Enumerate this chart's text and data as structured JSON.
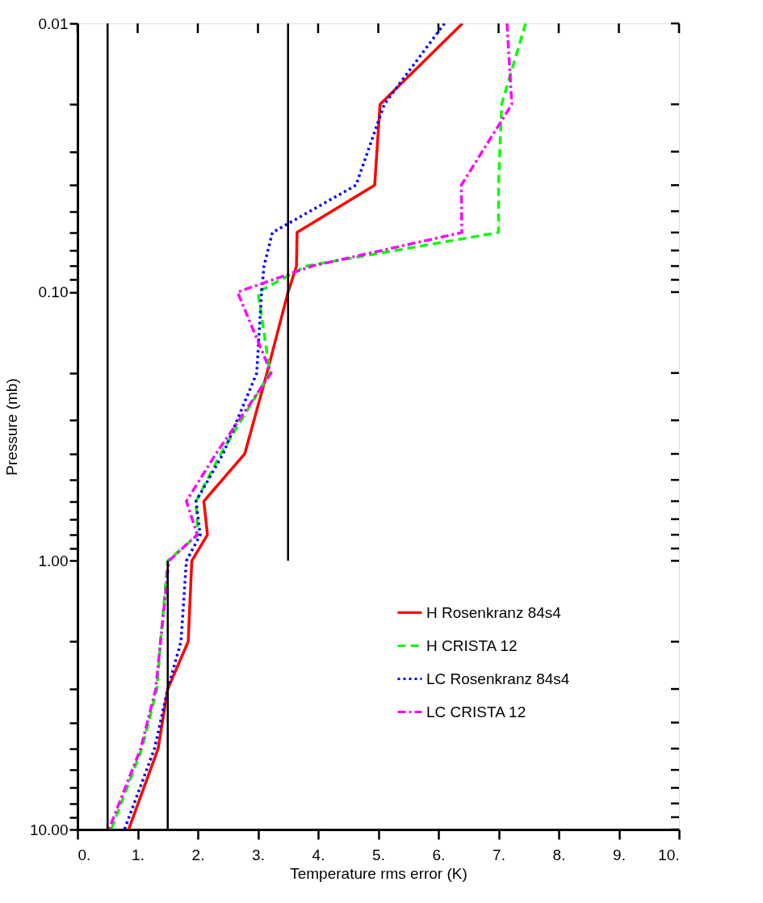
{
  "chart_data": {
    "type": "line",
    "xlabel": "Temperature rms error (K)",
    "ylabel": "Pressure (mb)",
    "xlim": [
      0,
      10
    ],
    "ylim": [
      10,
      0.01
    ],
    "log": "y",
    "grid": false,
    "legend": "bottom right",
    "xticks": [
      {
        "value": 0,
        "label": "0."
      },
      {
        "value": 1,
        "label": "1."
      },
      {
        "value": 2,
        "label": "2."
      },
      {
        "value": 3,
        "label": "3."
      },
      {
        "value": 4,
        "label": "4."
      },
      {
        "value": 5,
        "label": "5."
      },
      {
        "value": 6,
        "label": "6."
      },
      {
        "value": 7,
        "label": "7."
      },
      {
        "value": 8,
        "label": "8."
      },
      {
        "value": 9,
        "label": "9."
      },
      {
        "value": 10,
        "label": "10."
      }
    ],
    "yticks": [
      {
        "value": 0.01,
        "label": "0.01"
      },
      {
        "value": 0.02,
        "label": null
      },
      {
        "value": 0.03,
        "label": null
      },
      {
        "value": 0.04,
        "label": null
      },
      {
        "value": 0.05,
        "label": null
      },
      {
        "value": 0.06,
        "label": null
      },
      {
        "value": 0.07,
        "label": null
      },
      {
        "value": 0.08,
        "label": null
      },
      {
        "value": 0.09,
        "label": null
      },
      {
        "value": 0.1,
        "label": "0.10"
      },
      {
        "value": 0.2,
        "label": null
      },
      {
        "value": 0.3,
        "label": null
      },
      {
        "value": 0.4,
        "label": null
      },
      {
        "value": 0.5,
        "label": null
      },
      {
        "value": 0.6,
        "label": null
      },
      {
        "value": 0.7,
        "label": null
      },
      {
        "value": 0.8,
        "label": null
      },
      {
        "value": 0.9,
        "label": null
      },
      {
        "value": 1,
        "label": "1.00"
      },
      {
        "value": 2,
        "label": null
      },
      {
        "value": 3,
        "label": null
      },
      {
        "value": 4,
        "label": null
      },
      {
        "value": 5,
        "label": null
      },
      {
        "value": 6,
        "label": null
      },
      {
        "value": 7,
        "label": null
      },
      {
        "value": 8,
        "label": null
      },
      {
        "value": 9,
        "label": null
      },
      {
        "value": 10,
        "label": "10.00"
      }
    ],
    "series": [
      {
        "name": "H  Rosenkranz 84s4",
        "color": "#ff0000",
        "line_style": "solid",
        "x": [
          6.4,
          5.03,
          4.94,
          3.65,
          3.64,
          3.5,
          3.15,
          2.78,
          2.1,
          2.16,
          1.9,
          1.84,
          1.5,
          1.34,
          0.85
        ],
        "values": [
          0.01,
          0.02,
          0.04,
          0.06,
          0.08,
          0.1,
          0.2,
          0.4,
          0.6,
          0.8,
          1,
          2,
          3,
          5,
          10
        ]
      },
      {
        "name": "H  CRISTA 12",
        "color": "#00ff00",
        "line_style": "dashed",
        "x": [
          7.45,
          7.05,
          7.0,
          7.0,
          3.8,
          3.0,
          3.2,
          2.38,
          1.97,
          2.0,
          1.5,
          1.38,
          1.32,
          1.07,
          0.56
        ],
        "values": [
          0.01,
          0.02,
          0.04,
          0.06,
          0.08,
          0.1,
          0.2,
          0.4,
          0.6,
          0.8,
          1,
          2,
          3,
          5,
          10
        ]
      },
      {
        "name": "LC Rosenkranz 84s4",
        "color": "#0000ff",
        "line_style": "dotted",
        "x": [
          6.1,
          5.1,
          4.63,
          3.24,
          3.1,
          3.06,
          2.98,
          2.42,
          1.97,
          2.04,
          1.81,
          1.72,
          1.5,
          1.28,
          0.78
        ],
        "values": [
          0.01,
          0.02,
          0.04,
          0.06,
          0.08,
          0.1,
          0.2,
          0.4,
          0.6,
          0.8,
          1,
          2,
          3,
          5,
          10
        ]
      },
      {
        "name": "LC CRISTA 12",
        "color": "#ff00ff",
        "line_style": "dashdot",
        "x": [
          7.14,
          7.22,
          6.38,
          6.39,
          3.9,
          2.66,
          3.22,
          2.3,
          1.81,
          1.99,
          1.52,
          1.38,
          1.3,
          1.05,
          0.52
        ],
        "values": [
          0.01,
          0.02,
          0.04,
          0.06,
          0.08,
          0.1,
          0.2,
          0.4,
          0.6,
          0.8,
          1,
          2,
          3,
          5,
          10
        ]
      },
      {
        "color": "#000000",
        "line_style": "solid",
        "x": [
          0.5,
          0.5
        ],
        "values": [
          0.01,
          10
        ]
      },
      {
        "color": "#000000",
        "line_style": "solid",
        "x": [
          3.5,
          3.5
        ],
        "values": [
          0.01,
          1
        ]
      },
      {
        "color": "#000000",
        "line_style": "solid",
        "x": [
          1.5,
          1.5
        ],
        "values": [
          1,
          10
        ]
      }
    ]
  }
}
